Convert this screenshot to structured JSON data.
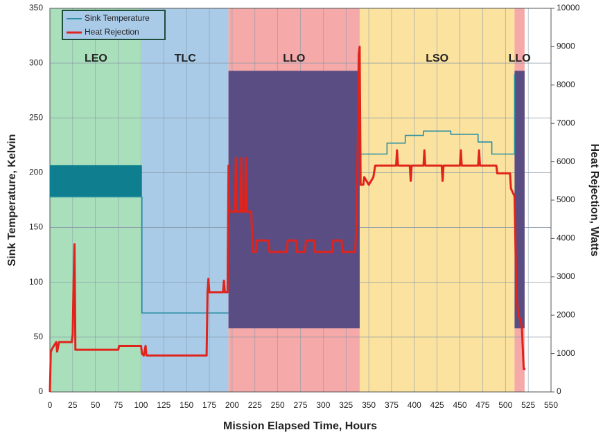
{
  "chart_data": {
    "type": "line",
    "xlabel": "Mission Elapsed Time, Hours",
    "ylabel": "Sink Temperature, Kelvin",
    "y2label": "Heat Rejection, Watts",
    "xlim": [
      0,
      550
    ],
    "xticks": [
      0,
      25,
      50,
      75,
      100,
      125,
      150,
      175,
      200,
      225,
      250,
      275,
      300,
      325,
      350,
      375,
      400,
      425,
      450,
      475,
      500,
      525,
      550
    ],
    "ylim": [
      0,
      350
    ],
    "yticks": [
      0,
      50,
      100,
      150,
      200,
      250,
      300,
      350
    ],
    "y2lim": [
      0,
      10000
    ],
    "y2ticks": [
      0,
      1000,
      2000,
      3000,
      4000,
      5000,
      6000,
      7000,
      8000,
      9000,
      10000
    ],
    "grid": true,
    "legend": "upper left",
    "regions": [
      {
        "label": "LEO",
        "start": 0,
        "end": 101,
        "color": "#a9e0bb"
      },
      {
        "label": "TLC",
        "start": 101,
        "end": 196,
        "color": "#a9cbe8"
      },
      {
        "label": "LLO",
        "start": 196,
        "end": 340,
        "color": "#f5a9a9"
      },
      {
        "label": "LSO",
        "start": 340,
        "end": 510,
        "color": "#fbe29f"
      },
      {
        "label": "LLO",
        "start": 510,
        "end": 521,
        "color": "#f5a9a9"
      }
    ],
    "series": [
      {
        "name": "Sink Temperature",
        "color": "#2a8fa3",
        "x": [
          0,
          101,
          101,
          196,
          196,
          340,
          340,
          370,
          370,
          390,
          390,
          410,
          410,
          440,
          440,
          470,
          470,
          485,
          485,
          510,
          510
        ],
        "values": [
          178,
          178,
          72,
          72,
          null,
          217,
          217,
          217,
          227,
          227,
          234,
          234,
          238,
          238,
          235,
          235,
          228,
          228,
          217,
          217,
          290
        ],
        "ranges": [
          {
            "x": [
              0,
              101
            ],
            "low": 178,
            "high": 207,
            "color": "#0f7e8e"
          },
          {
            "x": [
              196,
              340
            ],
            "low": 58,
            "high": 293,
            "color": "#5a4d84"
          },
          {
            "x": [
              510,
              521
            ],
            "low": 58,
            "high": 293,
            "color": "#5a4d84"
          }
        ]
      },
      {
        "name": "Heat Rejection",
        "color": "#e0231b",
        "axis": "y2",
        "x": [
          0,
          1,
          3,
          7,
          8,
          10,
          24,
          25,
          26,
          27,
          28,
          30,
          75,
          76,
          100,
          101,
          103,
          105,
          106,
          125,
          172,
          173,
          174,
          175,
          190,
          191,
          192,
          195,
          196,
          197,
          203,
          204,
          205,
          209,
          210,
          211,
          214,
          215,
          216,
          221,
          222,
          223,
          226,
          227,
          240,
          241,
          260,
          261,
          270,
          271,
          280,
          281,
          290,
          291,
          310,
          311,
          320,
          321,
          335,
          336,
          338,
          339,
          340,
          341,
          344,
          345,
          350,
          355,
          357,
          380,
          381,
          382,
          395,
          396,
          397,
          410,
          411,
          412,
          430,
          431,
          432,
          450,
          451,
          452,
          470,
          471,
          472,
          490,
          491,
          505,
          506,
          510,
          512,
          514,
          516,
          518,
          520,
          522
        ],
        "values": [
          0,
          1050,
          1150,
          1300,
          1050,
          1300,
          1300,
          1500,
          2900,
          3850,
          1100,
          1100,
          1100,
          1200,
          1200,
          1000,
          950,
          1200,
          950,
          950,
          950,
          2600,
          2950,
          2600,
          2600,
          2900,
          2600,
          2600,
          5900,
          4700,
          4700,
          6100,
          4700,
          4700,
          6100,
          4700,
          4700,
          6100,
          4700,
          4700,
          4000,
          3650,
          3650,
          3950,
          3950,
          3650,
          3650,
          3950,
          3950,
          3650,
          3650,
          3950,
          3950,
          3650,
          3650,
          3950,
          3950,
          3650,
          3650,
          4200,
          6600,
          8800,
          9000,
          5400,
          5400,
          5600,
          5400,
          5600,
          5900,
          5900,
          6300,
          5900,
          5900,
          5500,
          5900,
          5900,
          6300,
          5900,
          5900,
          5500,
          5900,
          5900,
          6300,
          5900,
          5900,
          6300,
          5900,
          5900,
          5700,
          5700,
          5300,
          5100,
          2600,
          2000,
          1900,
          1700,
          600,
          600
        ]
      }
    ]
  }
}
